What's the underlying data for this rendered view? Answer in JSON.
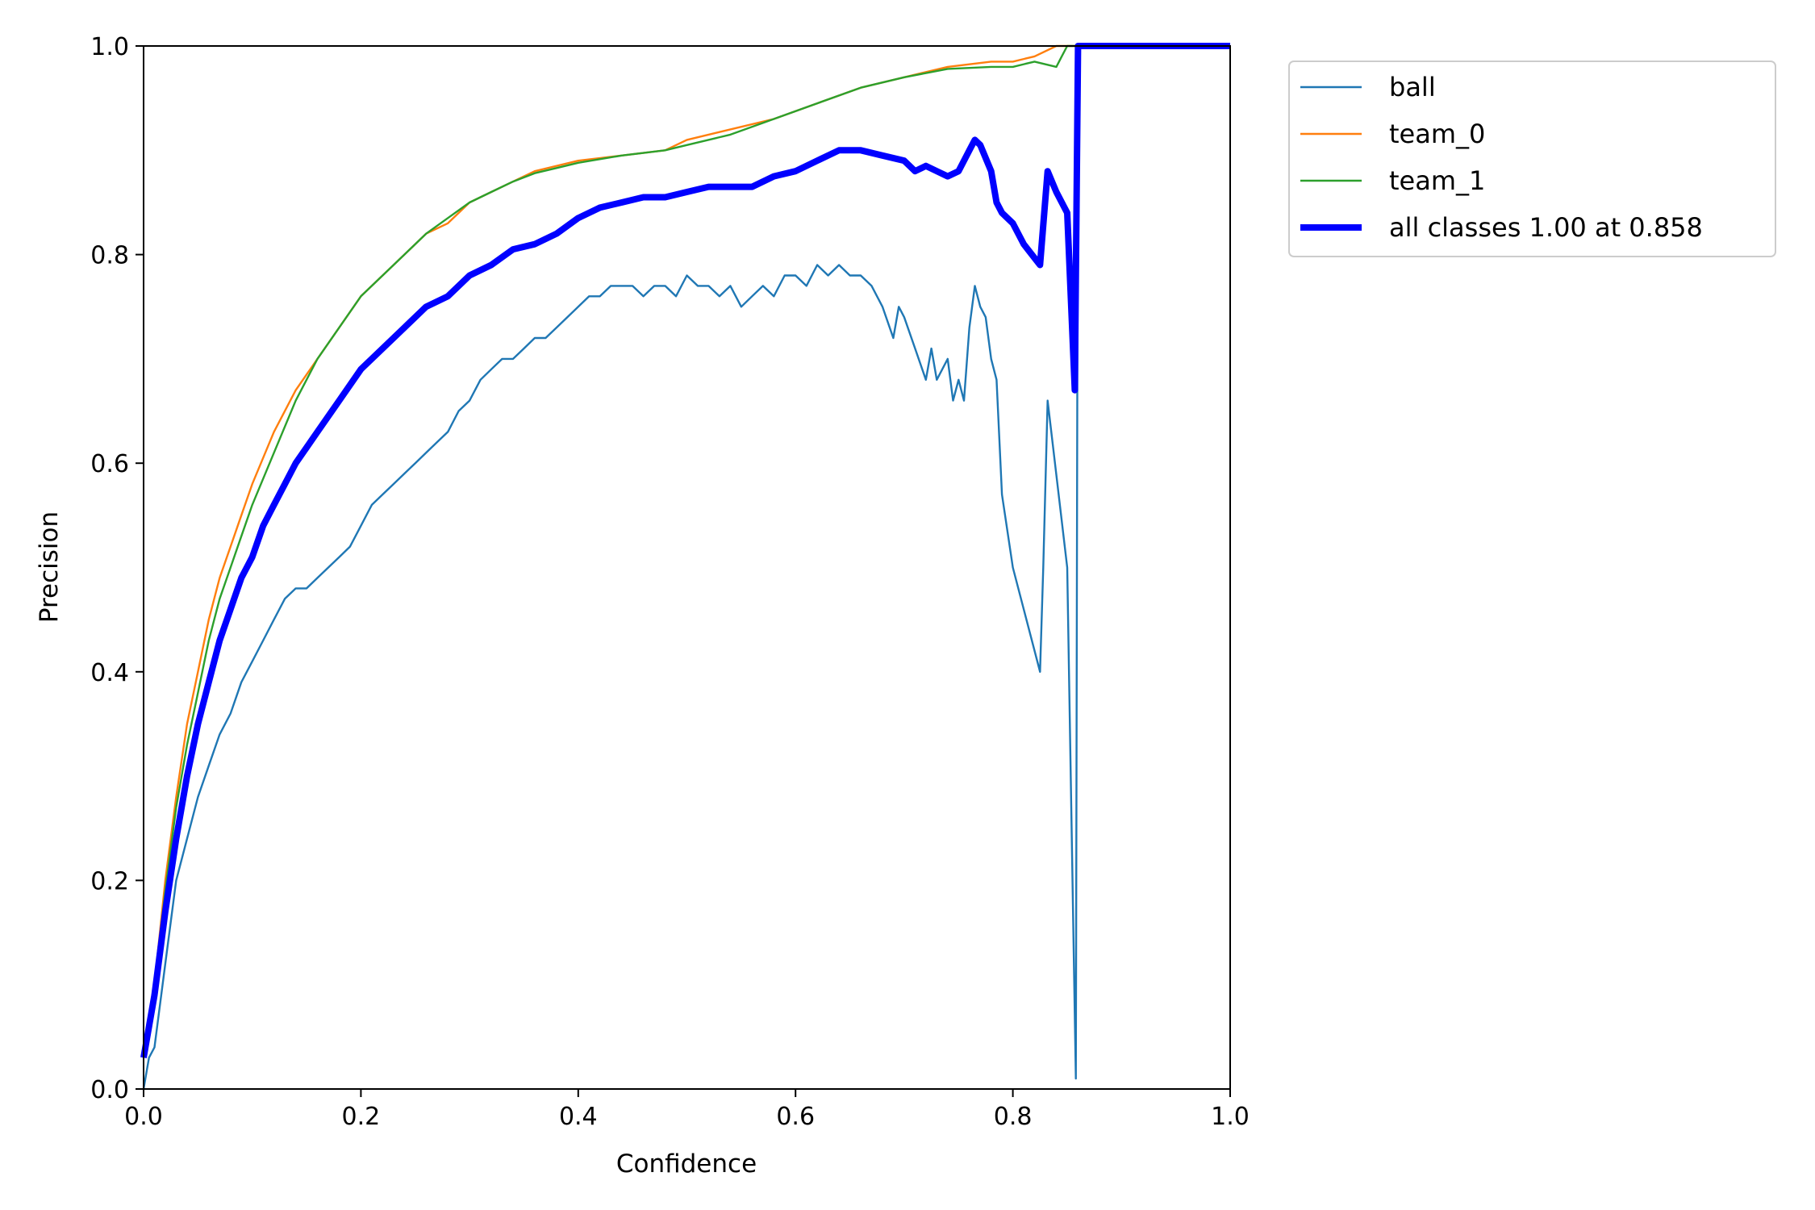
{
  "chart_data": {
    "type": "line",
    "xlabel": "Confidence",
    "ylabel": "Precision",
    "xlim": [
      0,
      1
    ],
    "ylim": [
      0,
      1
    ],
    "xticks": [
      "0.0",
      "0.2",
      "0.4",
      "0.6",
      "0.8",
      "1.0"
    ],
    "yticks": [
      "0.0",
      "0.2",
      "0.4",
      "0.6",
      "0.8",
      "1.0"
    ],
    "grid": false,
    "legend_position": "outside-top-right",
    "series": [
      {
        "name": "ball",
        "color": "#1f77b4",
        "width": "thin",
        "points": [
          [
            0,
            0.0
          ],
          [
            0.005,
            0.03
          ],
          [
            0.01,
            0.04
          ],
          [
            0.02,
            0.12
          ],
          [
            0.03,
            0.2
          ],
          [
            0.04,
            0.24
          ],
          [
            0.05,
            0.28
          ],
          [
            0.06,
            0.31
          ],
          [
            0.07,
            0.34
          ],
          [
            0.08,
            0.36
          ],
          [
            0.09,
            0.39
          ],
          [
            0.1,
            0.41
          ],
          [
            0.11,
            0.43
          ],
          [
            0.12,
            0.45
          ],
          [
            0.13,
            0.47
          ],
          [
            0.14,
            0.48
          ],
          [
            0.15,
            0.48
          ],
          [
            0.16,
            0.49
          ],
          [
            0.17,
            0.5
          ],
          [
            0.18,
            0.51
          ],
          [
            0.19,
            0.52
          ],
          [
            0.2,
            0.54
          ],
          [
            0.21,
            0.56
          ],
          [
            0.22,
            0.57
          ],
          [
            0.23,
            0.58
          ],
          [
            0.24,
            0.59
          ],
          [
            0.25,
            0.6
          ],
          [
            0.26,
            0.61
          ],
          [
            0.27,
            0.62
          ],
          [
            0.28,
            0.63
          ],
          [
            0.29,
            0.65
          ],
          [
            0.3,
            0.66
          ],
          [
            0.31,
            0.68
          ],
          [
            0.32,
            0.69
          ],
          [
            0.33,
            0.7
          ],
          [
            0.34,
            0.7
          ],
          [
            0.35,
            0.71
          ],
          [
            0.36,
            0.72
          ],
          [
            0.37,
            0.72
          ],
          [
            0.38,
            0.73
          ],
          [
            0.39,
            0.74
          ],
          [
            0.4,
            0.75
          ],
          [
            0.41,
            0.76
          ],
          [
            0.42,
            0.76
          ],
          [
            0.43,
            0.77
          ],
          [
            0.44,
            0.77
          ],
          [
            0.45,
            0.77
          ],
          [
            0.46,
            0.76
          ],
          [
            0.47,
            0.77
          ],
          [
            0.48,
            0.77
          ],
          [
            0.49,
            0.76
          ],
          [
            0.5,
            0.78
          ],
          [
            0.51,
            0.77
          ],
          [
            0.52,
            0.77
          ],
          [
            0.53,
            0.76
          ],
          [
            0.54,
            0.77
          ],
          [
            0.55,
            0.75
          ],
          [
            0.56,
            0.76
          ],
          [
            0.57,
            0.77
          ],
          [
            0.58,
            0.76
          ],
          [
            0.59,
            0.78
          ],
          [
            0.6,
            0.78
          ],
          [
            0.61,
            0.77
          ],
          [
            0.62,
            0.79
          ],
          [
            0.63,
            0.78
          ],
          [
            0.64,
            0.79
          ],
          [
            0.65,
            0.78
          ],
          [
            0.66,
            0.78
          ],
          [
            0.67,
            0.77
          ],
          [
            0.68,
            0.75
          ],
          [
            0.69,
            0.72
          ],
          [
            0.695,
            0.75
          ],
          [
            0.7,
            0.74
          ],
          [
            0.71,
            0.71
          ],
          [
            0.72,
            0.68
          ],
          [
            0.725,
            0.71
          ],
          [
            0.73,
            0.68
          ],
          [
            0.74,
            0.7
          ],
          [
            0.745,
            0.66
          ],
          [
            0.75,
            0.68
          ],
          [
            0.755,
            0.66
          ],
          [
            0.76,
            0.73
          ],
          [
            0.765,
            0.77
          ],
          [
            0.77,
            0.75
          ],
          [
            0.775,
            0.74
          ],
          [
            0.78,
            0.7
          ],
          [
            0.785,
            0.68
          ],
          [
            0.79,
            0.57
          ],
          [
            0.8,
            0.5
          ],
          [
            0.825,
            0.4
          ],
          [
            0.828,
            0.5
          ],
          [
            0.832,
            0.66
          ],
          [
            0.85,
            0.5
          ],
          [
            0.858,
            0.01
          ],
          [
            0.86,
            1.0
          ],
          [
            1.0,
            1.0
          ]
        ]
      },
      {
        "name": "team_0",
        "color": "#ff7f0e",
        "width": "thin",
        "points": [
          [
            0,
            0.04
          ],
          [
            0.01,
            0.1
          ],
          [
            0.02,
            0.2
          ],
          [
            0.03,
            0.28
          ],
          [
            0.04,
            0.35
          ],
          [
            0.05,
            0.4
          ],
          [
            0.06,
            0.45
          ],
          [
            0.07,
            0.49
          ],
          [
            0.08,
            0.52
          ],
          [
            0.09,
            0.55
          ],
          [
            0.1,
            0.58
          ],
          [
            0.12,
            0.63
          ],
          [
            0.14,
            0.67
          ],
          [
            0.16,
            0.7
          ],
          [
            0.18,
            0.73
          ],
          [
            0.2,
            0.76
          ],
          [
            0.22,
            0.78
          ],
          [
            0.24,
            0.8
          ],
          [
            0.26,
            0.82
          ],
          [
            0.28,
            0.83
          ],
          [
            0.3,
            0.85
          ],
          [
            0.32,
            0.86
          ],
          [
            0.34,
            0.87
          ],
          [
            0.36,
            0.88
          ],
          [
            0.38,
            0.885
          ],
          [
            0.4,
            0.89
          ],
          [
            0.44,
            0.895
          ],
          [
            0.48,
            0.9
          ],
          [
            0.5,
            0.91
          ],
          [
            0.54,
            0.92
          ],
          [
            0.58,
            0.93
          ],
          [
            0.62,
            0.945
          ],
          [
            0.66,
            0.96
          ],
          [
            0.7,
            0.97
          ],
          [
            0.74,
            0.98
          ],
          [
            0.78,
            0.985
          ],
          [
            0.8,
            0.985
          ],
          [
            0.82,
            0.99
          ],
          [
            0.84,
            1.0
          ],
          [
            1.0,
            1.0
          ]
        ]
      },
      {
        "name": "team_1",
        "color": "#2ca02c",
        "width": "thin",
        "points": [
          [
            0,
            0.04
          ],
          [
            0.01,
            0.1
          ],
          [
            0.02,
            0.19
          ],
          [
            0.03,
            0.27
          ],
          [
            0.04,
            0.33
          ],
          [
            0.05,
            0.38
          ],
          [
            0.06,
            0.43
          ],
          [
            0.07,
            0.47
          ],
          [
            0.08,
            0.5
          ],
          [
            0.09,
            0.53
          ],
          [
            0.1,
            0.56
          ],
          [
            0.12,
            0.61
          ],
          [
            0.14,
            0.66
          ],
          [
            0.16,
            0.7
          ],
          [
            0.18,
            0.73
          ],
          [
            0.2,
            0.76
          ],
          [
            0.22,
            0.78
          ],
          [
            0.24,
            0.8
          ],
          [
            0.26,
            0.82
          ],
          [
            0.28,
            0.835
          ],
          [
            0.3,
            0.85
          ],
          [
            0.32,
            0.86
          ],
          [
            0.34,
            0.87
          ],
          [
            0.36,
            0.878
          ],
          [
            0.38,
            0.883
          ],
          [
            0.4,
            0.888
          ],
          [
            0.44,
            0.895
          ],
          [
            0.48,
            0.9
          ],
          [
            0.5,
            0.905
          ],
          [
            0.54,
            0.915
          ],
          [
            0.58,
            0.93
          ],
          [
            0.62,
            0.945
          ],
          [
            0.66,
            0.96
          ],
          [
            0.7,
            0.97
          ],
          [
            0.74,
            0.978
          ],
          [
            0.78,
            0.98
          ],
          [
            0.8,
            0.98
          ],
          [
            0.82,
            0.985
          ],
          [
            0.84,
            0.98
          ],
          [
            0.845,
            0.99
          ],
          [
            0.85,
            1.0
          ],
          [
            1.0,
            1.0
          ]
        ]
      },
      {
        "name": "all classes 1.00 at 0.858",
        "color": "#0000ff",
        "width": "thick",
        "points": [
          [
            0,
            0.03
          ],
          [
            0.01,
            0.09
          ],
          [
            0.02,
            0.17
          ],
          [
            0.03,
            0.24
          ],
          [
            0.04,
            0.3
          ],
          [
            0.05,
            0.35
          ],
          [
            0.06,
            0.39
          ],
          [
            0.07,
            0.43
          ],
          [
            0.08,
            0.46
          ],
          [
            0.09,
            0.49
          ],
          [
            0.1,
            0.51
          ],
          [
            0.11,
            0.54
          ],
          [
            0.12,
            0.56
          ],
          [
            0.13,
            0.58
          ],
          [
            0.14,
            0.6
          ],
          [
            0.16,
            0.63
          ],
          [
            0.18,
            0.66
          ],
          [
            0.2,
            0.69
          ],
          [
            0.22,
            0.71
          ],
          [
            0.24,
            0.73
          ],
          [
            0.26,
            0.75
          ],
          [
            0.28,
            0.76
          ],
          [
            0.3,
            0.78
          ],
          [
            0.32,
            0.79
          ],
          [
            0.34,
            0.805
          ],
          [
            0.36,
            0.81
          ],
          [
            0.38,
            0.82
          ],
          [
            0.4,
            0.835
          ],
          [
            0.42,
            0.845
          ],
          [
            0.44,
            0.85
          ],
          [
            0.46,
            0.855
          ],
          [
            0.48,
            0.855
          ],
          [
            0.5,
            0.86
          ],
          [
            0.52,
            0.865
          ],
          [
            0.54,
            0.865
          ],
          [
            0.56,
            0.865
          ],
          [
            0.58,
            0.875
          ],
          [
            0.6,
            0.88
          ],
          [
            0.62,
            0.89
          ],
          [
            0.64,
            0.9
          ],
          [
            0.66,
            0.9
          ],
          [
            0.68,
            0.895
          ],
          [
            0.7,
            0.89
          ],
          [
            0.71,
            0.88
          ],
          [
            0.72,
            0.885
          ],
          [
            0.73,
            0.88
          ],
          [
            0.74,
            0.875
          ],
          [
            0.75,
            0.88
          ],
          [
            0.76,
            0.9
          ],
          [
            0.765,
            0.91
          ],
          [
            0.77,
            0.905
          ],
          [
            0.78,
            0.88
          ],
          [
            0.785,
            0.85
          ],
          [
            0.79,
            0.84
          ],
          [
            0.8,
            0.83
          ],
          [
            0.81,
            0.81
          ],
          [
            0.825,
            0.79
          ],
          [
            0.832,
            0.88
          ],
          [
            0.84,
            0.86
          ],
          [
            0.85,
            0.84
          ],
          [
            0.857,
            0.67
          ],
          [
            0.86,
            1.0
          ],
          [
            1.0,
            1.0
          ]
        ]
      }
    ]
  }
}
